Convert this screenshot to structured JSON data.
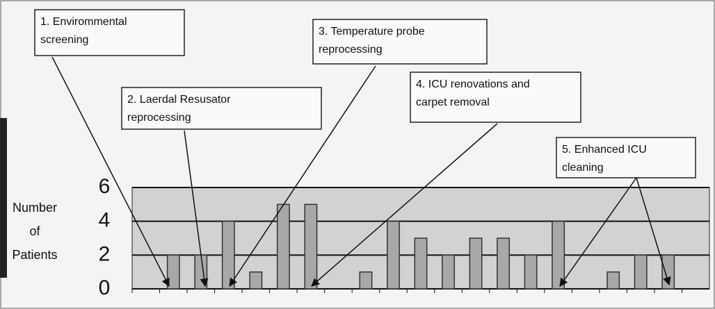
{
  "chart_data": {
    "type": "bar",
    "ylabel": [
      "Number",
      "of",
      "Patients"
    ],
    "categories": [
      null,
      null,
      null,
      null,
      null,
      null,
      null,
      null,
      null,
      null,
      null,
      null,
      null,
      null,
      null,
      null,
      null,
      null,
      null,
      null,
      null
    ],
    "values": [
      0,
      2,
      2,
      4,
      1,
      5,
      5,
      0,
      1,
      4,
      3,
      2,
      3,
      3,
      2,
      4,
      0,
      1,
      2,
      2,
      0
    ],
    "color": "#a8a8a8",
    "ylim": [
      0,
      6
    ],
    "yticks": [
      0,
      2,
      4,
      6
    ],
    "grid": true,
    "annotations": [
      {
        "lines": [
          "1. Envirommental",
          "screening"
        ]
      },
      {
        "lines": [
          "2. Laerdal Resusator",
          "reprocessing"
        ]
      },
      {
        "lines": [
          "3. Temperature probe",
          "reprocessing"
        ]
      },
      {
        "lines": [
          "4. ICU renovations and",
          "carpet removal"
        ]
      },
      {
        "lines": [
          "5. Enhanced ICU",
          "cleaning"
        ]
      }
    ]
  }
}
